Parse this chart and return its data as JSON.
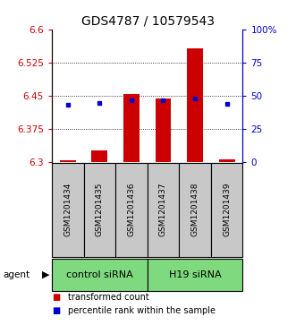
{
  "title": "GDS4787 / 10579543",
  "samples": [
    "GSM1201434",
    "GSM1201435",
    "GSM1201436",
    "GSM1201437",
    "GSM1201438",
    "GSM1201439"
  ],
  "bar_tops": [
    6.305,
    6.328,
    6.455,
    6.445,
    6.557,
    6.308
  ],
  "bar_base": 6.3,
  "blue_dots": [
    6.43,
    6.435,
    6.44,
    6.44,
    6.445,
    6.432
  ],
  "ymin": 6.3,
  "ymax": 6.6,
  "yticks_left": [
    6.3,
    6.375,
    6.45,
    6.525,
    6.6
  ],
  "yticks_right": [
    0,
    25,
    50,
    75,
    100
  ],
  "bar_color": "#CC0000",
  "dot_color": "#0000CC",
  "bar_width": 0.5,
  "agent_label": "agent",
  "legend_items": [
    {
      "color": "#CC0000",
      "label": "transformed count"
    },
    {
      "color": "#0000CC",
      "label": "percentile rank within the sample"
    }
  ],
  "title_fontsize": 10,
  "tick_fontsize": 7.5,
  "sample_fontsize": 6.5,
  "group_fontsize": 8,
  "legend_fontsize": 7,
  "group_green": "#7FD97F",
  "sample_gray": "#C8C8C8"
}
